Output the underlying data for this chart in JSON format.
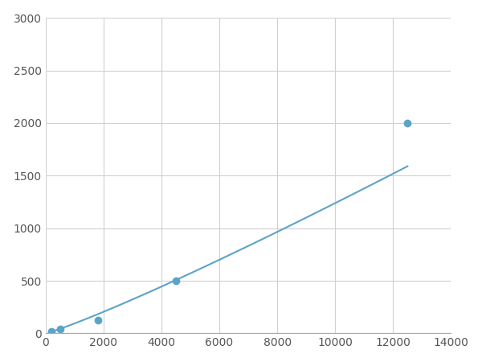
{
  "x": [
    200,
    500,
    1800,
    4500,
    12500
  ],
  "y": [
    20,
    40,
    125,
    500,
    2000
  ],
  "line_color": "#5ba3c9",
  "marker_color": "#5ba3c9",
  "marker_size": 6,
  "marker_style": "o",
  "xlim": [
    0,
    14000
  ],
  "ylim": [
    0,
    3000
  ],
  "xticks": [
    0,
    2000,
    4000,
    6000,
    8000,
    10000,
    12000,
    14000
  ],
  "yticks": [
    0,
    500,
    1000,
    1500,
    2000,
    2500,
    3000
  ],
  "grid": true,
  "grid_color": "#d0d0d0",
  "background_color": "#ffffff",
  "figsize": [
    6.0,
    4.5
  ],
  "dpi": 100
}
